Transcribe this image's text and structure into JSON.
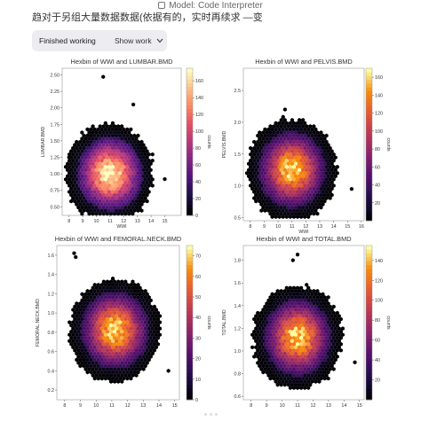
{
  "header": {
    "model_label": "Model: Code Interpreter",
    "icon": "model-icon"
  },
  "message": {
    "text": "趋对于另组大量数据数据(依据有的，实时再续求 —变"
  },
  "status": {
    "label": "Finished working",
    "toggle": "Show work",
    "toggle_icon": "chevron-down-icon"
  },
  "chart_data": [
    {
      "type": "heatmap",
      "title": "Hexbin of WWI and LUMBAR.BMD",
      "xlabel": "WWI",
      "ylabel": "LUMBAR.BMD",
      "xlim": [
        7.5,
        16.2
      ],
      "ylim": [
        0.37,
        2.6
      ],
      "xticks": [
        8,
        9,
        10,
        11,
        12,
        13,
        14,
        15
      ],
      "yticks": [
        0.5,
        0.75,
        1.0,
        1.25,
        1.5,
        1.75,
        2.0,
        2.25,
        2.5
      ],
      "yticklabels": [
        "0.50",
        "0.75",
        "1.00",
        "1.25",
        "1.50",
        "1.75",
        "2.00",
        "2.25",
        "2.50"
      ],
      "center": [
        11.0,
        1.0
      ],
      "outliers": [
        [
          10.5,
          2.47
        ],
        [
          12.7,
          2.05
        ],
        [
          15.0,
          0.92
        ],
        [
          8.0,
          1.25
        ]
      ],
      "colorbar": {
        "label": "counts",
        "min": 0,
        "max": 175,
        "ticks": [
          0,
          20,
          40,
          60,
          80,
          100,
          120,
          140,
          160
        ]
      }
    },
    {
      "type": "heatmap",
      "title": "Hexbin of WWI and PELVIS.BMD",
      "xlabel": "WWI",
      "ylabel": "PELVIS.BMD",
      "xlim": [
        7.5,
        16.2
      ],
      "ylim": [
        0.45,
        2.85
      ],
      "xticks": [
        8,
        9,
        10,
        11,
        12,
        13,
        14,
        15,
        16
      ],
      "yticks": [
        0.5,
        1.0,
        1.5,
        2.0,
        2.5
      ],
      "yticklabels": [
        "0.5",
        "1.0",
        "1.5",
        "2.0",
        "2.5"
      ],
      "center": [
        11.0,
        1.25
      ],
      "outliers": [
        [
          10.5,
          2.2
        ],
        [
          15.3,
          0.95
        ],
        [
          8.0,
          1.1
        ]
      ],
      "colorbar": {
        "label": "counts",
        "min": 0,
        "max": 170,
        "ticks": [
          20,
          40,
          60,
          80,
          100,
          120,
          140,
          160
        ]
      }
    },
    {
      "type": "heatmap",
      "title": "Hexbin of WWI and FEMORAL.NECK.BMD",
      "xlabel": "WWI",
      "ylabel": "FEMORAL.NECK.BMD",
      "xlim": [
        7.5,
        15.3
      ],
      "ylim": [
        0.1,
        1.7
      ],
      "xticks": [
        8,
        9,
        10,
        11,
        12,
        13,
        14,
        15
      ],
      "yticks": [
        0.2,
        0.4,
        0.6,
        0.8,
        1.0,
        1.2,
        1.4,
        1.6
      ],
      "yticklabels": [
        "0.2",
        "0.4",
        "0.6",
        "0.8",
        "1.0",
        "1.2",
        "1.4",
        "1.6"
      ],
      "center": [
        11.2,
        0.82
      ],
      "outliers": [
        [
          8.6,
          1.62
        ],
        [
          8.7,
          1.58
        ],
        [
          14.6,
          0.4
        ]
      ],
      "colorbar": {
        "label": "counts",
        "min": 0,
        "max": 75,
        "ticks": [
          0,
          10,
          20,
          30,
          40,
          50,
          60,
          70
        ]
      }
    },
    {
      "type": "heatmap",
      "title": "Hexbin of WWI and TOTAL.BMD",
      "xlabel": "WWI",
      "ylabel": "TOTAL.BMD",
      "xlim": [
        7.5,
        15.3
      ],
      "ylim": [
        0.57,
        1.93
      ],
      "xticks": [
        8,
        9,
        10,
        11,
        12,
        13,
        14,
        15
      ],
      "yticks": [
        0.6,
        0.8,
        1.0,
        1.2,
        1.4,
        1.6,
        1.8
      ],
      "yticklabels": [
        "0.6",
        "0.8",
        "1.0",
        "1.2",
        "1.4",
        "1.6",
        "1.8"
      ],
      "center": [
        11.0,
        1.12
      ],
      "outliers": [
        [
          11.0,
          1.85
        ],
        [
          10.7,
          1.8
        ],
        [
          14.7,
          0.9
        ]
      ],
      "colorbar": {
        "label": "counts",
        "min": 0,
        "max": 155,
        "ticks": [
          20,
          40,
          60,
          80,
          100,
          120,
          140
        ]
      }
    }
  ]
}
